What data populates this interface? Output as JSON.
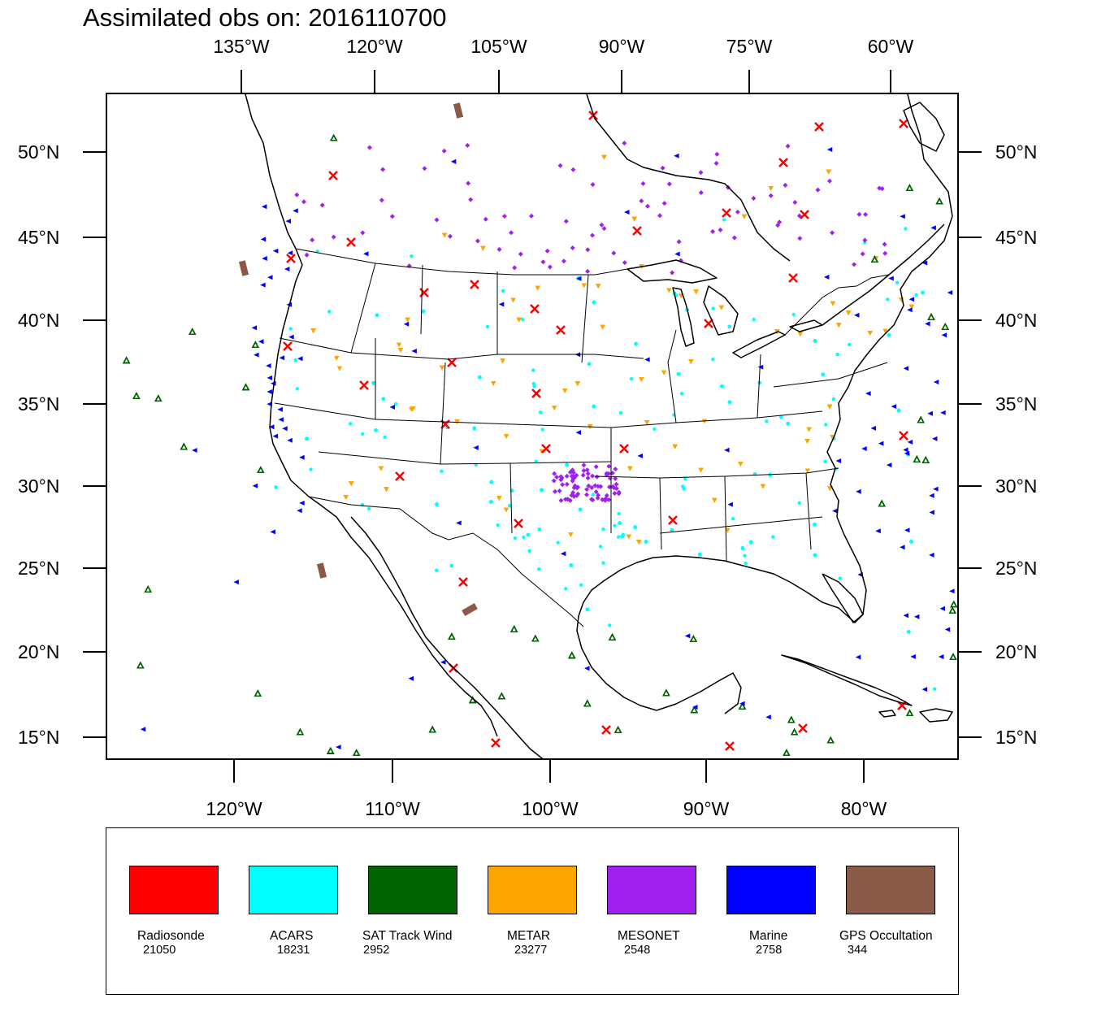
{
  "title": "Assimilated obs on: 2016110700",
  "axes": {
    "top_ticks": [
      "135°W",
      "120°W",
      "105°W",
      "90°W",
      "75°W",
      "60°W"
    ],
    "bottom_ticks": [
      "120°W",
      "110°W",
      "100°W",
      "90°W",
      "80°W"
    ],
    "left_ticks": [
      "50°N",
      "45°N",
      "40°N",
      "35°N",
      "30°N",
      "25°N",
      "20°N",
      "15°N"
    ],
    "right_ticks": [
      "50°N",
      "45°N",
      "40°N",
      "35°N",
      "30°N",
      "25°N",
      "20°N",
      "15°N"
    ]
  },
  "legend": {
    "items": [
      {
        "name": "Radiosonde",
        "count": "21050",
        "color": "#ff0000",
        "marker": "x-mark"
      },
      {
        "name": "ACARS",
        "count": "18231",
        "color": "#00ffff",
        "marker": "dot"
      },
      {
        "name": "SAT Track Wind",
        "count": "2952",
        "color": "#006400",
        "marker": "open-triangle"
      },
      {
        "name": "METAR",
        "count": "23277",
        "color": "#ffa500",
        "marker": "down-triangle"
      },
      {
        "name": "MESONET",
        "count": "2548",
        "color": "#a020f0",
        "marker": "diamond"
      },
      {
        "name": "Marine",
        "count": "2758",
        "color": "#0000ff",
        "marker": "left-triangle"
      },
      {
        "name": "GPS Occultation",
        "count": "344",
        "color": "#8b5a46",
        "marker": "slanted-bar"
      }
    ]
  },
  "map": {
    "region": "Continental United States and surrounding oceans",
    "lon_range": [
      -128,
      -73
    ],
    "lat_range": [
      14,
      53
    ],
    "coastline_color": "#000000",
    "state_borders": true
  }
}
